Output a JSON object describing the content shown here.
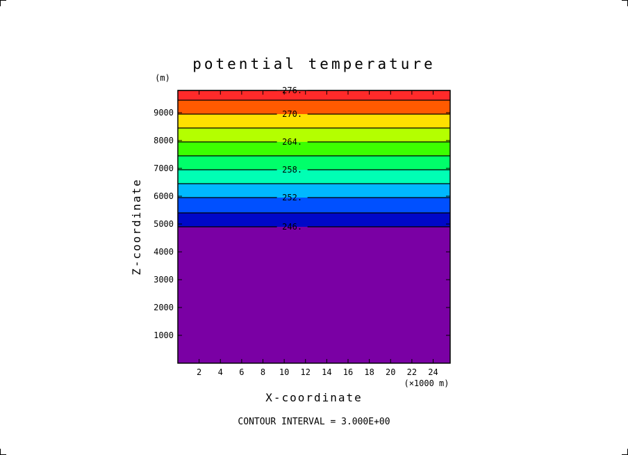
{
  "chart_data": {
    "type": "contour",
    "title": "potential temperature",
    "xlabel": "X-coordinate",
    "ylabel": "Z-coordinate",
    "x_unit": "(×1000 m)",
    "y_unit": "(m)",
    "xlim": [
      0,
      25.6
    ],
    "ylim": [
      0,
      9800
    ],
    "x_ticks": [
      2,
      4,
      6,
      8,
      10,
      12,
      14,
      16,
      18,
      20,
      22,
      24
    ],
    "y_ticks": [
      1000,
      2000,
      3000,
      4000,
      5000,
      6000,
      7000,
      8000,
      9000
    ],
    "footer": "CONTOUR INTERVAL = 3.000E+00",
    "contour_interval": 3.0,
    "contours": [
      {
        "value": 246,
        "label": "246.",
        "z": 4900
      },
      {
        "value": 249,
        "label": "",
        "z": 5400
      },
      {
        "value": 252,
        "label": "252.",
        "z": 5950
      },
      {
        "value": 255,
        "label": "",
        "z": 6450
      },
      {
        "value": 258,
        "label": "258.",
        "z": 6950
      },
      {
        "value": 261,
        "label": "",
        "z": 7450
      },
      {
        "value": 264,
        "label": "264.",
        "z": 7950
      },
      {
        "value": 267,
        "label": "",
        "z": 8450
      },
      {
        "value": 270,
        "label": "270.",
        "z": 8950
      },
      {
        "value": 273,
        "label": "",
        "z": 9450
      },
      {
        "value": 276,
        "label": "276.",
        "z": 9800
      }
    ],
    "fill_bands": [
      {
        "from": 0,
        "to": 4900,
        "color": "#7a00a4"
      },
      {
        "from": 4900,
        "to": 5400,
        "color": "#0008c8"
      },
      {
        "from": 5400,
        "to": 5950,
        "color": "#0050ff"
      },
      {
        "from": 5950,
        "to": 6450,
        "color": "#00b8ff"
      },
      {
        "from": 6450,
        "to": 6950,
        "color": "#00ffb4"
      },
      {
        "from": 6950,
        "to": 7450,
        "color": "#00ff6a"
      },
      {
        "from": 7450,
        "to": 7950,
        "color": "#3cff00"
      },
      {
        "from": 7950,
        "to": 8450,
        "color": "#b4ff00"
      },
      {
        "from": 8450,
        "to": 8950,
        "color": "#ffe000"
      },
      {
        "from": 8950,
        "to": 9450,
        "color": "#ff5a00"
      },
      {
        "from": 9450,
        "to": 9800,
        "color": "#ff2a2a"
      }
    ]
  }
}
